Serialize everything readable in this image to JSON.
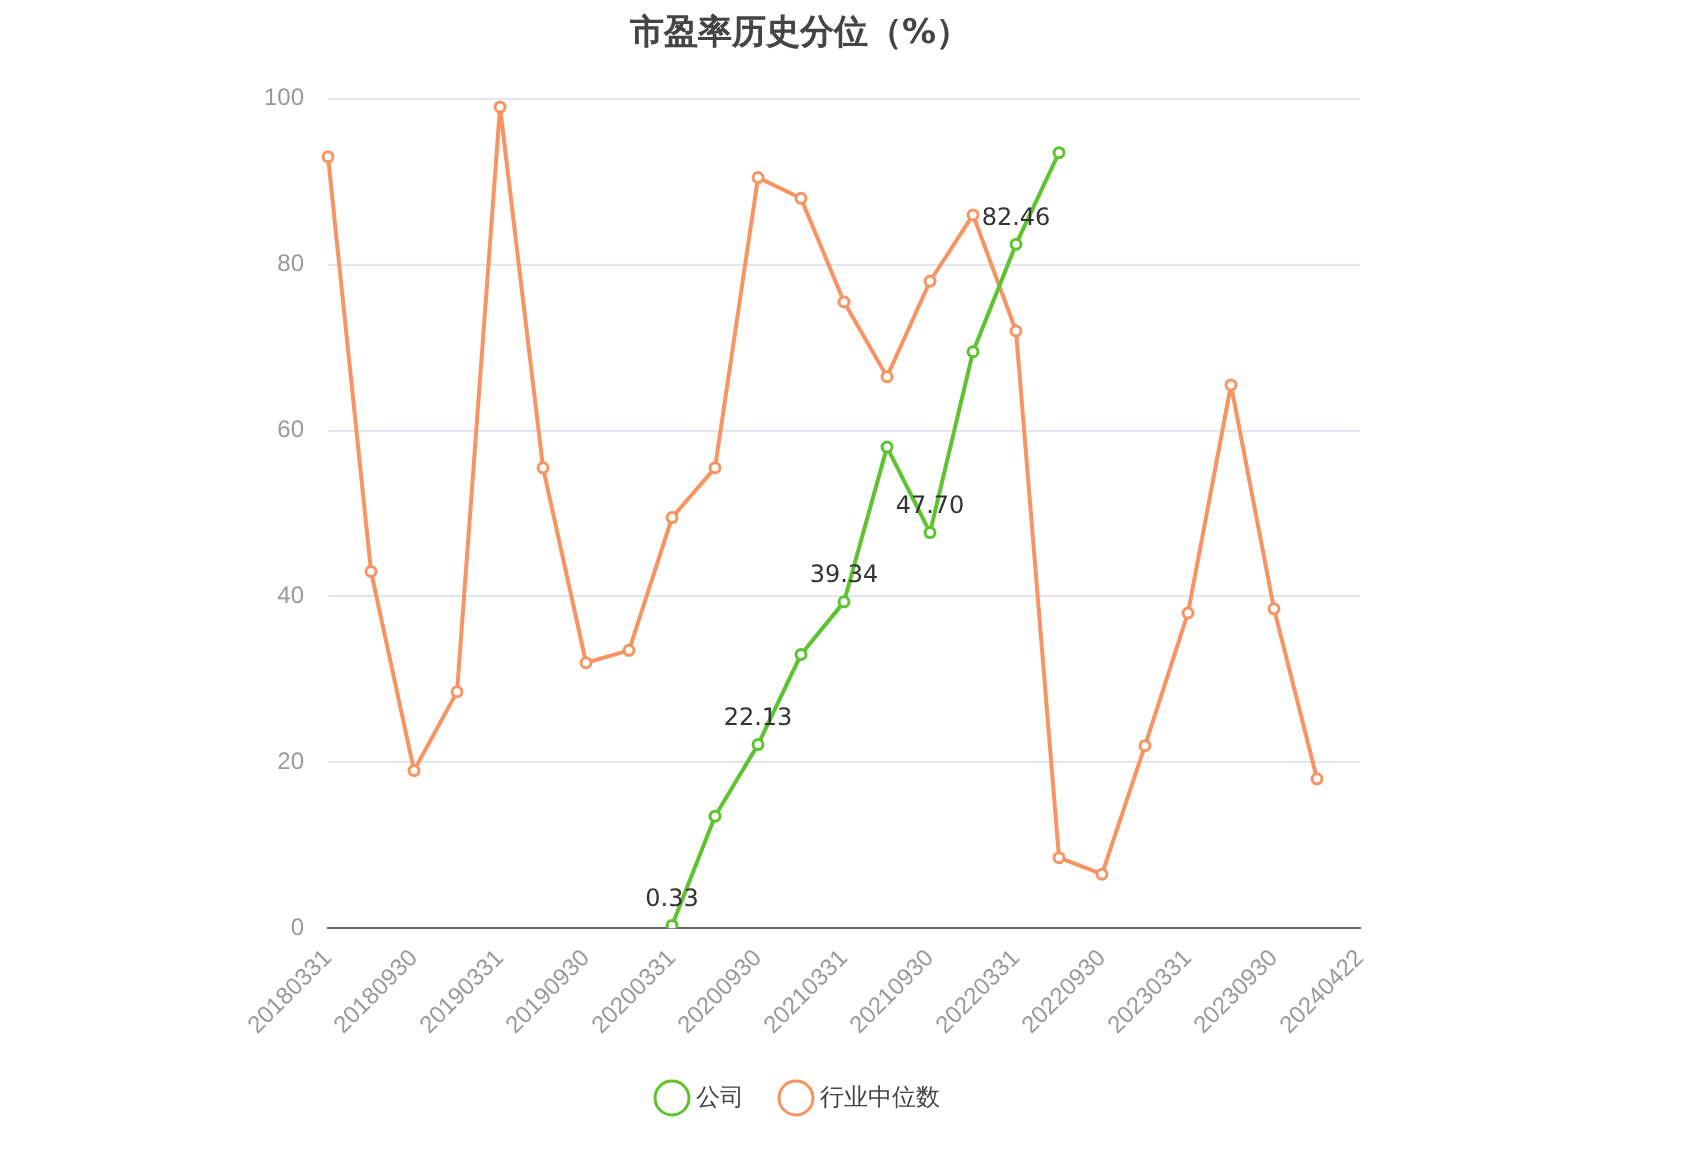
{
  "chart_data": {
    "type": "line",
    "title": "市盈率历史分位（%）",
    "categories": [
      "20180331",
      null,
      "20180930",
      null,
      "20190331",
      null,
      "20190930",
      null,
      "20200331",
      null,
      "20200930",
      null,
      "20210331",
      null,
      "20210930",
      null,
      "20220331",
      null,
      "20220930",
      null,
      "20230331",
      null,
      "20230930",
      null,
      "20240422"
    ],
    "series": [
      {
        "name": "公司",
        "color": "#5dc42f",
        "values": [
          null,
          null,
          null,
          null,
          null,
          null,
          null,
          null,
          0.33,
          13.5,
          22.13,
          33,
          39.34,
          58,
          47.7,
          69.5,
          82.46,
          93.5,
          null,
          null,
          null,
          null,
          null,
          null,
          null
        ],
        "value_labels": [
          null,
          null,
          null,
          null,
          null,
          null,
          null,
          null,
          "0.33",
          null,
          "22.13",
          null,
          "39.34",
          null,
          "47.70",
          null,
          "82.46",
          null,
          null,
          null,
          null,
          null,
          null,
          null,
          null
        ]
      },
      {
        "name": "行业中位数",
        "color": "#f79462",
        "values": [
          93,
          43,
          19,
          28.5,
          99,
          55.5,
          32,
          33.5,
          49.5,
          55.5,
          90.5,
          88,
          75.5,
          66.5,
          78,
          86,
          72,
          8.5,
          6.5,
          22,
          38,
          65.5,
          38.5,
          18,
          null
        ]
      }
    ],
    "ylim": [
      0,
      100
    ],
    "yticks": [
      0,
      20,
      40,
      60,
      80,
      100
    ],
    "grid": "y",
    "legend": "bottom",
    "marker": "circle",
    "line_style": "solid"
  }
}
